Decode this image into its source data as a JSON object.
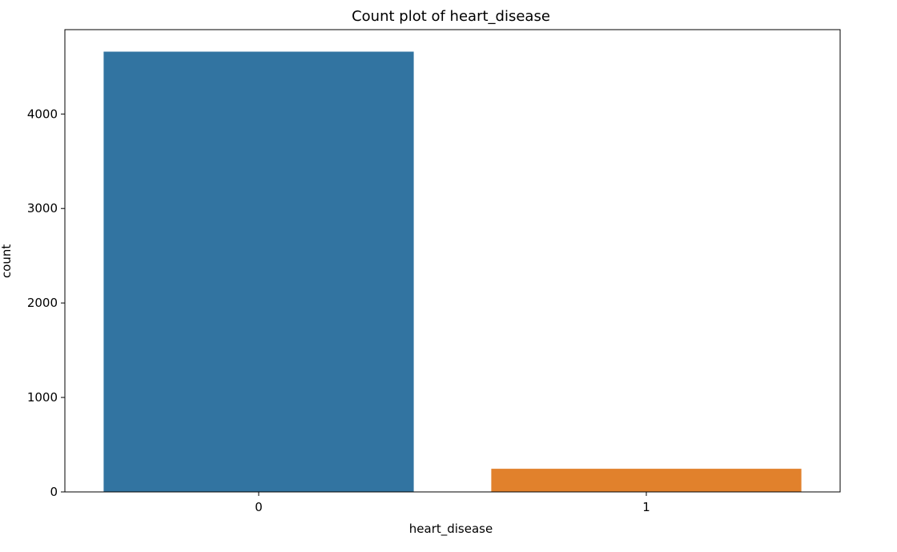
{
  "chart_data": {
    "type": "bar",
    "title": "Count plot of heart_disease",
    "xlabel": "heart_disease",
    "ylabel": "count",
    "categories": [
      "0",
      "1"
    ],
    "values": [
      4660,
      245
    ],
    "colors": [
      "#3274a1",
      "#e1812c"
    ],
    "ylim": [
      0,
      4893
    ],
    "yticks": [
      0,
      1000,
      2000,
      3000,
      4000
    ],
    "ytick_labels": [
      "0",
      "1000",
      "2000",
      "3000",
      "4000"
    ],
    "grid": false,
    "legend": null
  }
}
